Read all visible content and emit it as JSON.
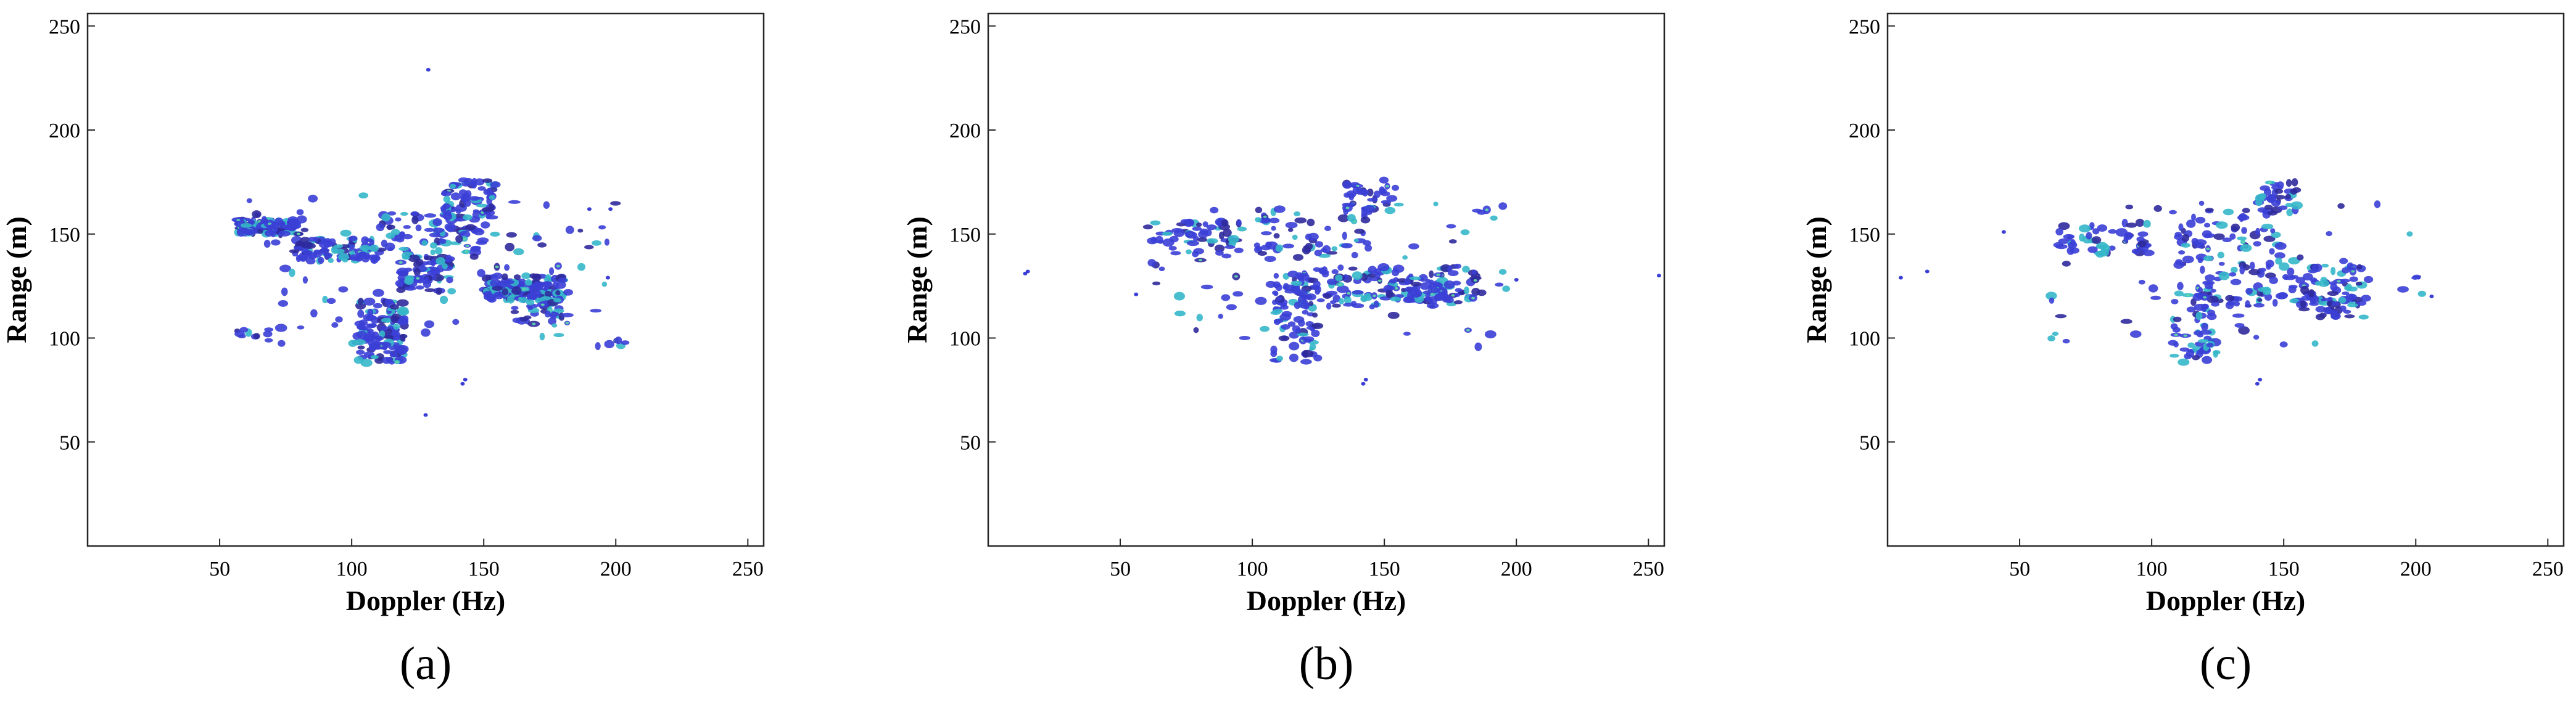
{
  "figure": {
    "panels": [
      {
        "caption": "(a)"
      },
      {
        "caption": "(b)"
      },
      {
        "caption": "(c)"
      }
    ],
    "colors": {
      "axis": "#262626",
      "scatter_main": "#3b3fd6",
      "scatter_dark": "#2f2a9c",
      "scatter_hot": "#35b7c9",
      "scatter_warm": "#5fd6a8"
    }
  },
  "chart_data": [
    {
      "type": "scatter",
      "title": "",
      "caption": "(a)",
      "xlabel": "Doppler (Hz)",
      "ylabel": "Range (m)",
      "xlim": [
        0,
        256
      ],
      "ylim": [
        0,
        256
      ],
      "xticks": [
        50,
        100,
        150,
        200,
        250
      ],
      "yticks": [
        50,
        100,
        150,
        200,
        250
      ],
      "clusters": [
        {
          "x": [
            56,
            80
          ],
          "y": [
            150,
            157
          ],
          "n": 110
        },
        {
          "x": [
            78,
            110
          ],
          "y": [
            137,
            148
          ],
          "n": 90
        },
        {
          "x": [
            110,
            150
          ],
          "y": [
            140,
            160
          ],
          "n": 80
        },
        {
          "x": [
            135,
            155
          ],
          "y": [
            158,
            176
          ],
          "n": 70
        },
        {
          "x": [
            118,
            138
          ],
          "y": [
            122,
            140
          ],
          "n": 70
        },
        {
          "x": [
            150,
            180
          ],
          "y": [
            118,
            130
          ],
          "n": 130
        },
        {
          "x": [
            160,
            180
          ],
          "y": [
            108,
            120
          ],
          "n": 35
        },
        {
          "x": [
            102,
            120
          ],
          "y": [
            88,
            118
          ],
          "n": 120
        },
        {
          "x": [
            55,
            75
          ],
          "y": [
            100,
            105
          ],
          "n": 10
        },
        {
          "x": [
            190,
            205
          ],
          "y": [
            95,
            100
          ],
          "n": 6
        },
        {
          "x": [
            60,
            200
          ],
          "y": [
            95,
            170
          ],
          "n": 90
        }
      ],
      "isolated_points": [
        [
          129,
          229
        ],
        [
          128,
          63
        ],
        [
          142,
          78
        ],
        [
          143,
          80
        ],
        [
          198,
          162
        ],
        [
          190,
          162
        ],
        [
          197,
          129
        ]
      ]
    },
    {
      "type": "scatter",
      "title": "",
      "caption": "(b)",
      "xlabel": "Doppler (Hz)",
      "ylabel": "Range (m)",
      "xlim": [
        0,
        256
      ],
      "ylim": [
        0,
        256
      ],
      "xticks": [
        50,
        100,
        150,
        200,
        250
      ],
      "yticks": [
        50,
        100,
        150,
        200,
        250
      ],
      "clusters": [
        {
          "x": [
            62,
            95
          ],
          "y": [
            140,
            156
          ],
          "n": 60
        },
        {
          "x": [
            100,
            145
          ],
          "y": [
            138,
            162
          ],
          "n": 60
        },
        {
          "x": [
            135,
            155
          ],
          "y": [
            160,
            176
          ],
          "n": 35
        },
        {
          "x": [
            108,
            125
          ],
          "y": [
            88,
            130
          ],
          "n": 75
        },
        {
          "x": [
            115,
            185
          ],
          "y": [
            115,
            135
          ],
          "n": 130
        },
        {
          "x": [
            150,
            175
          ],
          "y": [
            118,
            128
          ],
          "n": 40
        },
        {
          "x": [
            60,
            200
          ],
          "y": [
            95,
            165
          ],
          "n": 70
        }
      ],
      "isolated_points": [
        [
          14,
          131
        ],
        [
          15,
          132
        ],
        [
          142,
          78
        ],
        [
          143,
          80
        ],
        [
          254,
          130
        ],
        [
          200,
          128
        ],
        [
          56,
          121
        ]
      ]
    },
    {
      "type": "scatter",
      "title": "",
      "caption": "(c)",
      "xlabel": "Doppler (Hz)",
      "ylabel": "Range (m)",
      "xlim": [
        0,
        256
      ],
      "ylim": [
        0,
        256
      ],
      "xticks": [
        50,
        100,
        150,
        200,
        250
      ],
      "yticks": [
        50,
        100,
        150,
        200,
        250
      ],
      "clusters": [
        {
          "x": [
            65,
            100
          ],
          "y": [
            140,
            156
          ],
          "n": 50
        },
        {
          "x": [
            110,
            150
          ],
          "y": [
            135,
            162
          ],
          "n": 60
        },
        {
          "x": [
            140,
            155
          ],
          "y": [
            160,
            176
          ],
          "n": 35
        },
        {
          "x": [
            108,
            125
          ],
          "y": [
            88,
            125
          ],
          "n": 65
        },
        {
          "x": [
            120,
            180
          ],
          "y": [
            115,
            135
          ],
          "n": 110
        },
        {
          "x": [
            160,
            175
          ],
          "y": [
            110,
            122
          ],
          "n": 25
        },
        {
          "x": [
            55,
            205
          ],
          "y": [
            95,
            165
          ],
          "n": 60
        }
      ],
      "isolated_points": [
        [
          5,
          129
        ],
        [
          44,
          151
        ],
        [
          15,
          132
        ],
        [
          140,
          78
        ],
        [
          141,
          80
        ],
        [
          201,
          129
        ],
        [
          206,
          120
        ]
      ]
    }
  ]
}
